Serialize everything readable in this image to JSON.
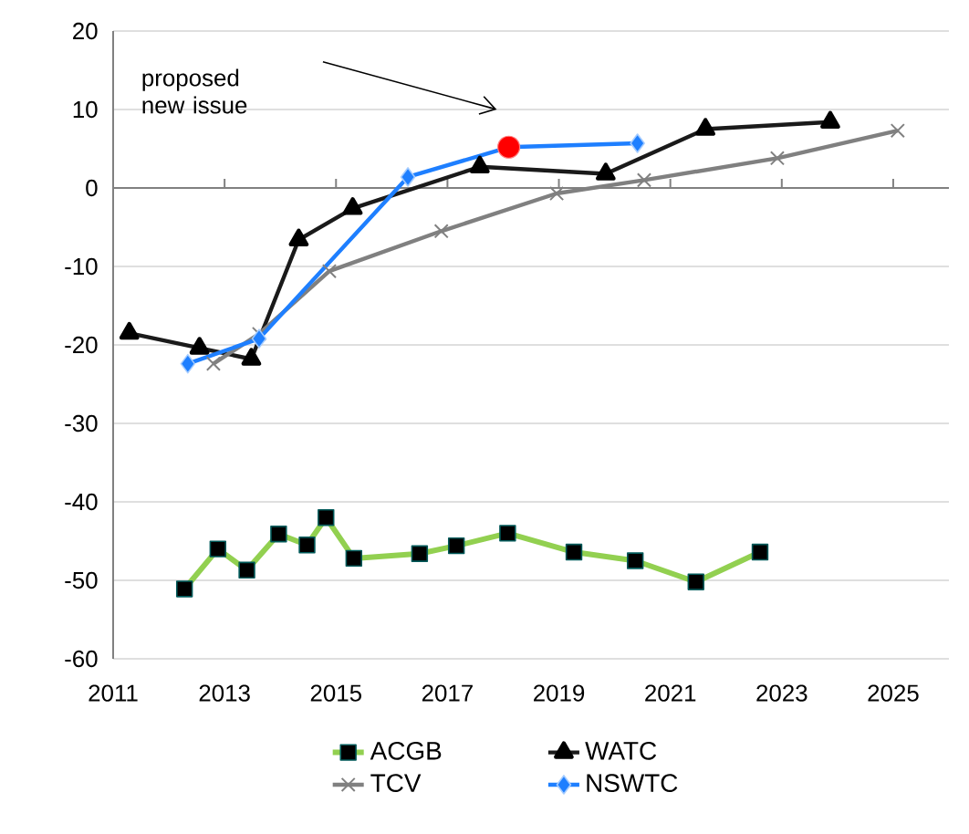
{
  "chart_data": {
    "type": "line",
    "xlim": [
      2011,
      2026
    ],
    "ylim": [
      -60,
      20
    ],
    "xticks": [
      2011,
      2013,
      2015,
      2017,
      2019,
      2021,
      2023,
      2025
    ],
    "yticks": [
      -60,
      -50,
      -40,
      -30,
      -20,
      -10,
      0,
      10,
      20
    ],
    "grid": "y",
    "legend": "bottom",
    "line_style": "solid",
    "annotations": [
      "proposed new issue"
    ],
    "series": [
      {
        "name": "ACGB",
        "color": "#92d050",
        "marker": "square",
        "x": [
          2012.28,
          2012.88,
          2013.4,
          2013.97,
          2014.48,
          2014.82,
          2015.32,
          2016.5,
          2017.16,
          2018.08,
          2019.27,
          2020.37,
          2021.46,
          2022.61
        ],
        "values": [
          -51.1,
          -46.0,
          -48.7,
          -44.1,
          -45.5,
          -42.0,
          -47.2,
          -46.6,
          -45.6,
          -44.0,
          -46.4,
          -47.5,
          -50.2,
          -46.4
        ]
      },
      {
        "name": "WATC",
        "color": "#1a1a1a",
        "marker": "triangle",
        "x": [
          2011.29,
          2012.55,
          2013.48,
          2014.33,
          2015.3,
          2017.58,
          2019.84,
          2021.63,
          2023.87
        ],
        "values": [
          -18.5,
          -20.4,
          -21.8,
          -6.6,
          -2.6,
          2.7,
          1.8,
          7.5,
          8.4
        ]
      },
      {
        "name": "TCV",
        "color": "#808080",
        "marker": "cross",
        "x": [
          2012.8,
          2013.62,
          2014.88,
          2016.89,
          2018.96,
          2020.53,
          2022.92,
          2025.08
        ],
        "values": [
          -22.4,
          -18.6,
          -10.6,
          -5.5,
          -0.7,
          1.0,
          3.8,
          7.3
        ]
      },
      {
        "name": "NSWTC",
        "color": "#1e7fff",
        "marker": "diamond",
        "x": [
          2012.34,
          2013.62,
          2016.29,
          2018.1,
          2020.41
        ],
        "values": [
          -22.4,
          -19.2,
          1.4,
          5.2,
          5.7
        ]
      },
      {
        "type": "scatter",
        "color": "#ff0000",
        "marker": "circle",
        "x": [
          2018.1
        ],
        "values": [
          5.2
        ]
      }
    ]
  }
}
